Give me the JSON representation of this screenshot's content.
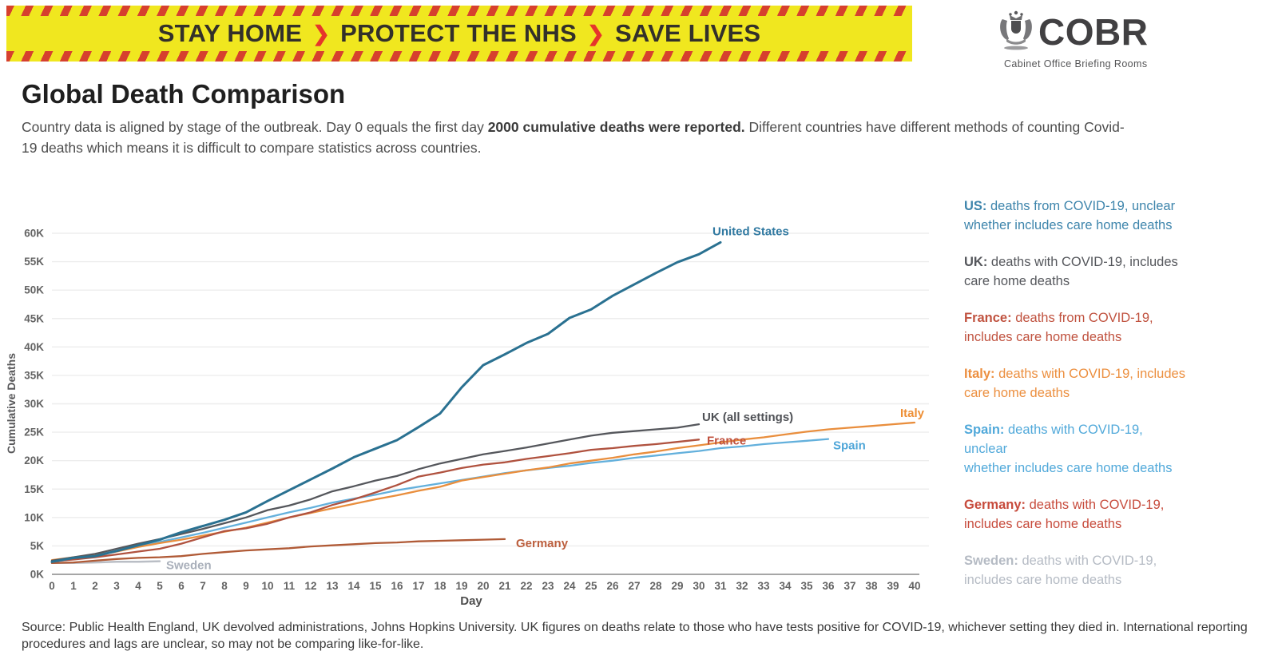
{
  "banner": {
    "segments": [
      "STAY HOME",
      "PROTECT THE NHS",
      "SAVE LIVES"
    ],
    "separator": "❯",
    "background_color": "#f0e71f",
    "stripe_color": "#d6402e",
    "text_color": "#33302a",
    "chevron_color": "#e6352b"
  },
  "cobr": {
    "name": "COBR",
    "tagline": "Cabinet Office Briefing Rooms"
  },
  "heading": {
    "title": "Global Death Comparison",
    "intro_pre": "Country data is aligned by stage of the outbreak. Day 0 equals the first day ",
    "intro_bold": "2000 cumulative deaths were reported.",
    "intro_post": " Different countries have different methods of counting Covid-19 deaths which means it is difficult to compare statistics across countries."
  },
  "chart_data": {
    "type": "line",
    "title": "",
    "xlabel": "Day",
    "ylabel": "Cumulative Deaths",
    "xlim": [
      0,
      40
    ],
    "ylim_thousands": [
      0,
      60
    ],
    "grid": "horizontal-only",
    "legend_position": "right-text-blocks",
    "x_ticks": [
      0,
      1,
      2,
      3,
      4,
      5,
      6,
      7,
      8,
      9,
      10,
      11,
      12,
      13,
      14,
      15,
      16,
      17,
      18,
      19,
      20,
      21,
      22,
      23,
      24,
      25,
      26,
      27,
      28,
      29,
      30,
      31,
      32,
      33,
      34,
      35,
      36,
      37,
      38,
      39,
      40
    ],
    "y_ticks": [
      {
        "value": 0,
        "label": "0K"
      },
      {
        "value": 5,
        "label": "5K"
      },
      {
        "value": 10,
        "label": "10K"
      },
      {
        "value": 15,
        "label": "15K"
      },
      {
        "value": 20,
        "label": "20K"
      },
      {
        "value": 25,
        "label": "25K"
      },
      {
        "value": 30,
        "label": "30K"
      },
      {
        "value": 35,
        "label": "35K"
      },
      {
        "value": 40,
        "label": "40K"
      },
      {
        "value": 45,
        "label": "45K"
      },
      {
        "value": 50,
        "label": "50K"
      },
      {
        "value": 55,
        "label": "55K"
      },
      {
        "value": 60,
        "label": "60K"
      }
    ],
    "series": [
      {
        "id": "sweden",
        "name": "Sweden",
        "label": "Sweden",
        "color": "#babec5",
        "label_color": "#a9afba",
        "width": 2.5,
        "start_day": 0,
        "label_dx": 8,
        "label_dy": 5,
        "values_thousands": [
          2.0,
          2.0,
          2.1,
          2.2,
          2.2,
          2.3
        ]
      },
      {
        "id": "germany",
        "name": "Germany",
        "label": "Germany",
        "color": "#b05a36",
        "label_color": "#bc5f3e",
        "width": 2.3,
        "start_day": 0,
        "label_dx": 14,
        "label_dy": 5,
        "values_thousands": [
          2.0,
          2.1,
          2.4,
          2.7,
          2.9,
          3.0,
          3.2,
          3.6,
          3.9,
          4.2,
          4.4,
          4.6,
          4.9,
          5.1,
          5.3,
          5.5,
          5.6,
          5.8,
          5.9,
          6.0,
          6.1,
          6.2
        ]
      },
      {
        "id": "spain",
        "name": "Spain",
        "label": "Spain",
        "color": "#63b0dc",
        "label_color": "#4fa6d8",
        "width": 2.3,
        "start_day": 0,
        "label_dx": 6,
        "label_dy": 8,
        "values_thousands": [
          2.2,
          2.7,
          3.4,
          4.1,
          4.9,
          5.7,
          6.5,
          7.3,
          8.2,
          9.1,
          10.0,
          10.9,
          11.7,
          12.6,
          13.3,
          14.0,
          14.8,
          15.4,
          16.0,
          16.6,
          17.2,
          17.8,
          18.3,
          18.7,
          19.1,
          19.6,
          20.0,
          20.5,
          20.9,
          21.3,
          21.7,
          22.2,
          22.5,
          22.9,
          23.2,
          23.5,
          23.8
        ]
      },
      {
        "id": "italy",
        "name": "Italy",
        "label": "Italy",
        "color": "#e98e3d",
        "label_color": "#ee8f35",
        "width": 2.3,
        "start_day": 0,
        "label_dx": -18,
        "label_dy": -12,
        "values_thousands": [
          2.5,
          3.0,
          3.4,
          4.0,
          4.8,
          5.5,
          6.1,
          6.8,
          7.5,
          8.2,
          9.1,
          10.0,
          10.8,
          11.6,
          12.4,
          13.2,
          13.9,
          14.7,
          15.4,
          16.5,
          17.1,
          17.7,
          18.3,
          18.8,
          19.5,
          20.0,
          20.5,
          21.1,
          21.6,
          22.2,
          22.7,
          23.2,
          23.7,
          24.1,
          24.6,
          25.1,
          25.5,
          25.8,
          26.1,
          26.4,
          26.7
        ]
      },
      {
        "id": "france",
        "name": "France",
        "label": "France",
        "color": "#b0523f",
        "label_color": "#c0523f",
        "width": 2.3,
        "start_day": 0,
        "label_dx": 10,
        "label_dy": 1,
        "values_thousands": [
          2.3,
          2.6,
          3.0,
          3.5,
          4.0,
          4.5,
          5.4,
          6.5,
          7.6,
          8.1,
          8.9,
          10.0,
          10.9,
          12.2,
          13.2,
          14.4,
          15.7,
          17.2,
          17.9,
          18.7,
          19.3,
          19.7,
          20.3,
          20.8,
          21.3,
          21.9,
          22.2,
          22.6,
          22.9,
          23.3,
          23.7
        ]
      },
      {
        "id": "uk",
        "name": "UK",
        "label": "UK (all settings)",
        "color": "#55575c",
        "label_color": "#4f5156",
        "width": 2.3,
        "start_day": 0,
        "label_dx": 4,
        "label_dy": -9,
        "values_thousands": [
          2.4,
          3.0,
          3.6,
          4.5,
          5.4,
          6.2,
          7.1,
          8.0,
          9.0,
          10.0,
          11.3,
          12.1,
          13.2,
          14.6,
          15.5,
          16.5,
          17.3,
          18.5,
          19.5,
          20.3,
          21.1,
          21.7,
          22.3,
          23.0,
          23.7,
          24.4,
          24.9,
          25.2,
          25.5,
          25.8,
          26.4
        ]
      },
      {
        "id": "us",
        "name": "United States",
        "label": "United States",
        "color": "#2a7191",
        "label_color": "#3079a1",
        "width": 3,
        "start_day": 0,
        "label_dx": -10,
        "label_dy": -14,
        "values_thousands": [
          2.2,
          2.9,
          3.2,
          4.1,
          5.1,
          6.1,
          7.4,
          8.5,
          9.6,
          10.9,
          12.9,
          14.8,
          16.7,
          18.6,
          20.6,
          22.1,
          23.6,
          25.9,
          28.3,
          32.9,
          36.8,
          38.7,
          40.7,
          42.3,
          45.1,
          46.6,
          49.0,
          51.0,
          53.0,
          54.9,
          56.3,
          58.4
        ]
      }
    ]
  },
  "legend": {
    "entries": [
      {
        "id": "us",
        "prefix": "US:",
        "line1": "deaths from COVID-19, unclear",
        "line2": "whether includes care home deaths",
        "color": "#3e85ac"
      },
      {
        "id": "uk",
        "prefix": "UK:",
        "line1": "deaths with COVID-19, includes",
        "line2": "care home deaths",
        "color": "#55575c"
      },
      {
        "id": "france",
        "prefix": "France:",
        "line1": "deaths from COVID-19,",
        "line2": "includes care home deaths",
        "color": "#c0523f"
      },
      {
        "id": "italy",
        "prefix": "Italy:",
        "line1": "deaths with COVID-19, includes",
        "line2": "care home deaths",
        "color": "#ec8f3f"
      },
      {
        "id": "spain",
        "prefix": "Spain:",
        "line1": "deaths with COVID-19, unclear",
        "line2": "whether includes care home deaths",
        "color": "#51a9da"
      },
      {
        "id": "germany",
        "prefix": "Germany:",
        "line1": "deaths with COVID-19,",
        "line2": "includes care home deaths",
        "color": "#c74b3c"
      },
      {
        "id": "sweden",
        "prefix": "Sweden:",
        "line1": "deaths with COVID-19,",
        "line2": "includes care home deaths",
        "color": "#b5bbc4"
      }
    ]
  },
  "source": {
    "text": "Source: Public Health England, UK devolved administrations, Johns Hopkins University. UK figures on deaths relate to those who have tests positive for COVID-19, whichever setting they died in. International reporting procedures and lags are unclear, so may not be comparing like-for-like."
  }
}
